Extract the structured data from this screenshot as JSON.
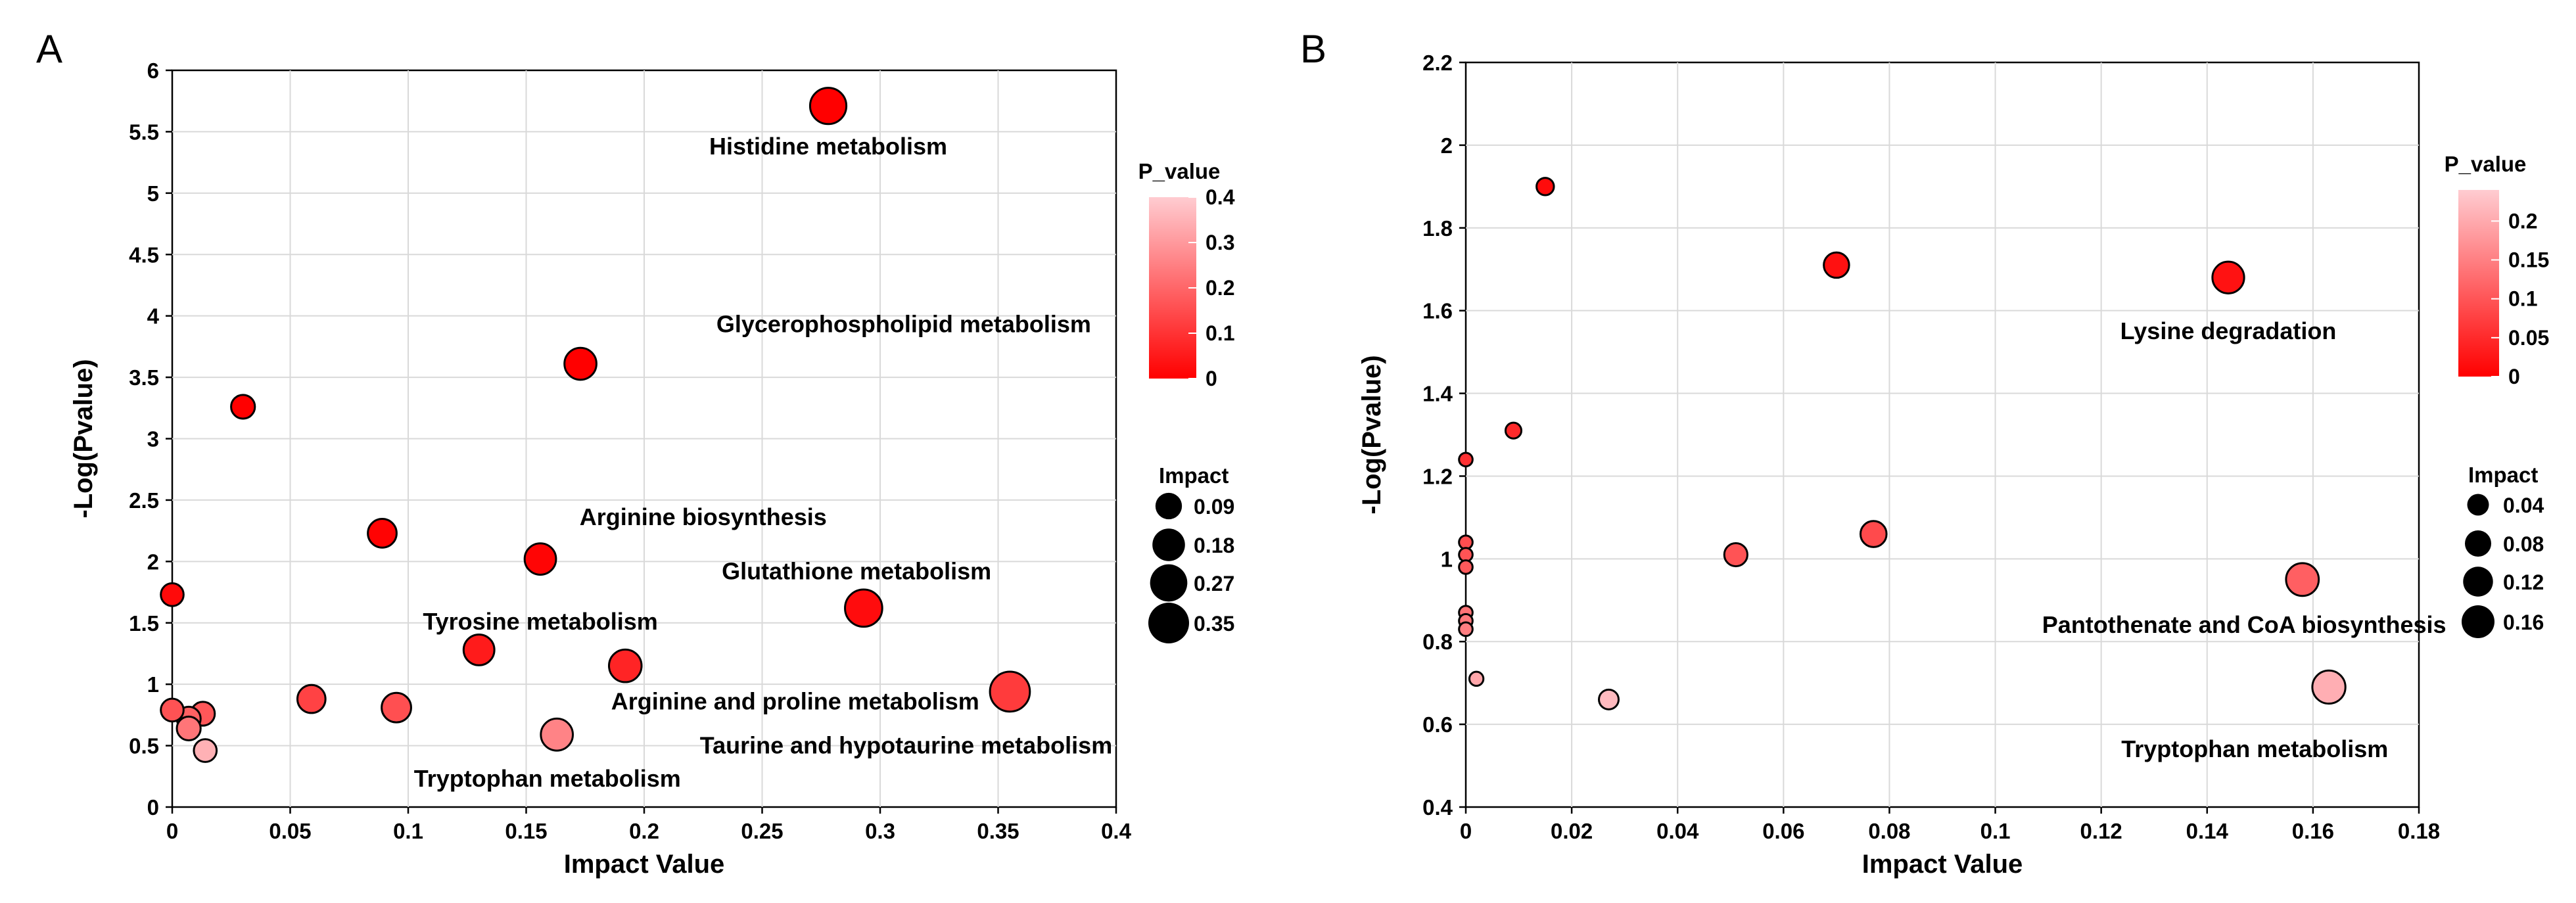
{
  "chart_data": [
    {
      "panel": "A",
      "type": "scatter",
      "title": "",
      "xlabel": "Impact Value",
      "ylabel": "-Log(Pvalue)",
      "xlim": [
        0,
        0.4
      ],
      "ylim": [
        0,
        6
      ],
      "xticks": [
        0,
        0.05,
        0.1,
        0.15,
        0.2,
        0.25,
        0.3,
        0.35,
        0.4
      ],
      "xtick_labels": [
        "0",
        "0.05",
        "0.1",
        "0.15",
        "0.2",
        "0.25",
        "0.3",
        "0.35",
        "0.4"
      ],
      "yticks": [
        0,
        0.5,
        1,
        1.5,
        2,
        2.5,
        3,
        3.5,
        4,
        4.5,
        5,
        5.5,
        6
      ],
      "ytick_labels": [
        "0",
        "0.5",
        "1",
        "1.5",
        "2",
        "2.5",
        "3",
        "3.5",
        "4",
        "4.5",
        "5",
        "5.5",
        "6"
      ],
      "grid": true,
      "color_legend": {
        "title": "P_value",
        "range": [
          0,
          0.4
        ],
        "ticks": [
          "0.4",
          "0.3",
          "0.2",
          "0.1",
          "0"
        ]
      },
      "size_legend": {
        "title": "Impact",
        "entries": [
          {
            "label": "0.09",
            "value": 0.09
          },
          {
            "label": "0.18",
            "value": 0.18
          },
          {
            "label": "0.27",
            "value": 0.27
          },
          {
            "label": "0.35",
            "value": 0.35
          }
        ]
      },
      "points": [
        {
          "x": 0.278,
          "y": 5.71,
          "impact": 0.25,
          "p": 2e-06
        },
        {
          "x": 0.173,
          "y": 3.61,
          "impact": 0.17,
          "p": 0.00025
        },
        {
          "x": 0.03,
          "y": 3.26,
          "impact": 0.06,
          "p": 0.00055
        },
        {
          "x": 0.089,
          "y": 2.23,
          "impact": 0.12,
          "p": 0.006
        },
        {
          "x": 0.156,
          "y": 2.02,
          "impact": 0.16,
          "p": 0.0095
        },
        {
          "x": 0.293,
          "y": 1.62,
          "impact": 0.27,
          "p": 0.024
        },
        {
          "x": 0.13,
          "y": 1.28,
          "impact": 0.15,
          "p": 0.052
        },
        {
          "x": 0.192,
          "y": 1.15,
          "impact": 0.18,
          "p": 0.071
        },
        {
          "x": 0.355,
          "y": 0.94,
          "impact": 0.33,
          "p": 0.115
        },
        {
          "x": 0.0,
          "y": 1.73,
          "impact": 0.05,
          "p": 0.019
        },
        {
          "x": 0.059,
          "y": 0.88,
          "impact": 0.11,
          "p": 0.13
        },
        {
          "x": 0.095,
          "y": 0.81,
          "impact": 0.13,
          "p": 0.155
        },
        {
          "x": 0.0,
          "y": 0.79,
          "impact": 0.05,
          "p": 0.16
        },
        {
          "x": 0.013,
          "y": 0.76,
          "impact": 0.06,
          "p": 0.17
        },
        {
          "x": 0.007,
          "y": 0.72,
          "impact": 0.06,
          "p": 0.19
        },
        {
          "x": 0.007,
          "y": 0.64,
          "impact": 0.06,
          "p": 0.23
        },
        {
          "x": 0.163,
          "y": 0.59,
          "impact": 0.17,
          "p": 0.257
        },
        {
          "x": 0.014,
          "y": 0.46,
          "impact": 0.05,
          "p": 0.347
        }
      ],
      "annotations": [
        {
          "text": "Histidine metabolism",
          "x": 0.278,
          "y": 5.38
        },
        {
          "text": "Glycerophospholipid metabolism",
          "x": 0.31,
          "y": 3.93
        },
        {
          "text": "Arginine biosynthesis",
          "x": 0.225,
          "y": 2.36
        },
        {
          "text": "Glutathione metabolism",
          "x": 0.29,
          "y": 1.92
        },
        {
          "text": "Tyrosine metabolism",
          "x": 0.156,
          "y": 1.51
        },
        {
          "text": "Arginine and proline metabolism",
          "x": 0.264,
          "y": 0.86
        },
        {
          "text": "Taurine and hypotaurine metabolism",
          "x": 0.311,
          "y": 0.5
        },
        {
          "text": "Tryptophan metabolism",
          "x": 0.159,
          "y": 0.23
        }
      ]
    },
    {
      "panel": "B",
      "type": "scatter",
      "title": "",
      "xlabel": "Impact Value",
      "ylabel": "-Log(Pvalue)",
      "xlim": [
        0,
        0.18
      ],
      "ylim": [
        0.4,
        2.2
      ],
      "xticks": [
        0,
        0.02,
        0.04,
        0.06,
        0.08,
        0.1,
        0.12,
        0.14,
        0.16,
        0.18
      ],
      "xtick_labels": [
        "0",
        "0.02",
        "0.04",
        "0.06",
        "0.08",
        "0.1",
        "0.12",
        "0.14",
        "0.16",
        "0.18"
      ],
      "yticks": [
        0.4,
        0.6,
        0.8,
        1,
        1.2,
        1.4,
        1.6,
        1.8,
        2,
        2.2
      ],
      "ytick_labels": [
        "0.4",
        "0.6",
        "0.8",
        "1",
        "1.2",
        "1.4",
        "1.6",
        "1.8",
        "2",
        "2.2"
      ],
      "grid": true,
      "color_legend": {
        "title": "P_value",
        "range": [
          0,
          0.24
        ],
        "ticks": [
          "0.2",
          "0.15",
          "0.1",
          "0.05",
          "0"
        ]
      },
      "size_legend": {
        "title": "Impact",
        "entries": [
          {
            "label": "0.04",
            "value": 0.04
          },
          {
            "label": "0.08",
            "value": 0.08
          },
          {
            "label": "0.12",
            "value": 0.12
          },
          {
            "label": "0.16",
            "value": 0.16
          }
        ]
      },
      "points": [
        {
          "x": 0.015,
          "y": 1.9,
          "impact": 0.015,
          "p": 0.0127
        },
        {
          "x": 0.07,
          "y": 1.71,
          "impact": 0.07,
          "p": 0.0195
        },
        {
          "x": 0.144,
          "y": 1.68,
          "impact": 0.144,
          "p": 0.021
        },
        {
          "x": 0.009,
          "y": 1.31,
          "impact": 0.009,
          "p": 0.049
        },
        {
          "x": 0.0,
          "y": 1.24,
          "impact": 0.003,
          "p": 0.058
        },
        {
          "x": 0.077,
          "y": 1.06,
          "impact": 0.077,
          "p": 0.087
        },
        {
          "x": 0.051,
          "y": 1.01,
          "impact": 0.051,
          "p": 0.098
        },
        {
          "x": 0.158,
          "y": 0.95,
          "impact": 0.158,
          "p": 0.112
        },
        {
          "x": 0.0,
          "y": 1.04,
          "impact": 0.003,
          "p": 0.091
        },
        {
          "x": 0.0,
          "y": 1.01,
          "impact": 0.003,
          "p": 0.098
        },
        {
          "x": 0.0,
          "y": 0.98,
          "impact": 0.003,
          "p": 0.105
        },
        {
          "x": 0.0,
          "y": 0.87,
          "impact": 0.003,
          "p": 0.135
        },
        {
          "x": 0.0,
          "y": 0.85,
          "impact": 0.003,
          "p": 0.141
        },
        {
          "x": 0.0,
          "y": 0.83,
          "impact": 0.003,
          "p": 0.148
        },
        {
          "x": 0.002,
          "y": 0.71,
          "impact": 0.004,
          "p": 0.195
        },
        {
          "x": 0.027,
          "y": 0.66,
          "impact": 0.027,
          "p": 0.219
        },
        {
          "x": 0.163,
          "y": 0.69,
          "impact": 0.163,
          "p": 0.205
        }
      ],
      "annotations": [
        {
          "text": "Lysine degradation",
          "x": 0.144,
          "y": 1.55
        },
        {
          "text": "Pantothenate and CoA biosynthesis",
          "x": 0.147,
          "y": 0.84
        },
        {
          "text": "Tryptophan metabolism",
          "x": 0.149,
          "y": 0.54
        }
      ]
    }
  ]
}
